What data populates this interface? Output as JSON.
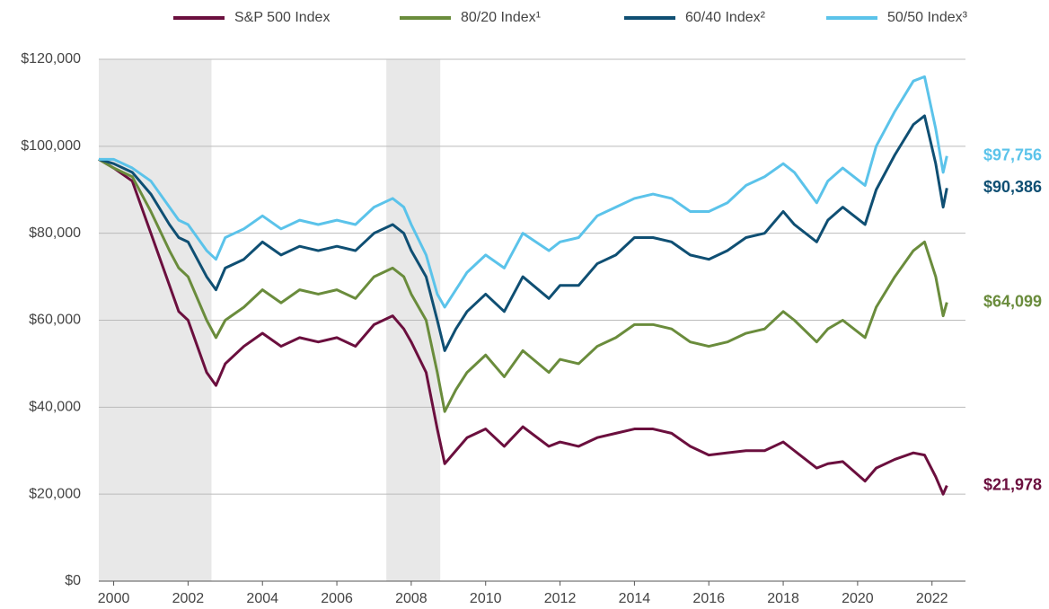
{
  "chart_data": {
    "type": "line",
    "x": [
      1999.6,
      2000.0,
      2000.5,
      2001.0,
      2001.5,
      2001.75,
      2002.0,
      2002.5,
      2002.75,
      2003.0,
      2003.5,
      2004.0,
      2004.5,
      2005.0,
      2005.5,
      2006.0,
      2006.5,
      2007.0,
      2007.5,
      2007.8,
      2008.0,
      2008.4,
      2008.7,
      2008.9,
      2009.2,
      2009.5,
      2010.0,
      2010.5,
      2011.0,
      2011.7,
      2012.0,
      2012.5,
      2013.0,
      2013.5,
      2014.0,
      2014.5,
      2015.0,
      2015.5,
      2016.0,
      2016.5,
      2017.0,
      2017.5,
      2018.0,
      2018.3,
      2018.9,
      2019.2,
      2019.6,
      2020.2,
      2020.5,
      2021.0,
      2021.5,
      2021.8,
      2022.1,
      2022.3,
      2022.4
    ],
    "series": [
      {
        "name": "S&P 500 Index",
        "color": "#6b0f3e",
        "end_label": "$21,978",
        "values": [
          97000,
          95000,
          92000,
          80000,
          68000,
          62000,
          60000,
          48000,
          45000,
          50000,
          54000,
          57000,
          54000,
          56000,
          55000,
          56000,
          54000,
          59000,
          61000,
          58000,
          55000,
          48000,
          35000,
          27000,
          30000,
          33000,
          35000,
          31000,
          35500,
          31000,
          32000,
          31000,
          33000,
          34000,
          35000,
          35000,
          34000,
          31000,
          29000,
          29500,
          30000,
          30000,
          32000,
          30000,
          26000,
          27000,
          27500,
          23000,
          26000,
          28000,
          29500,
          29000,
          24000,
          20000,
          21978
        ]
      },
      {
        "name": "80/20 Index¹",
        "color": "#6a8c3c",
        "end_label": "$64,099",
        "values": [
          97000,
          95000,
          93000,
          85000,
          76000,
          72000,
          70000,
          60000,
          56000,
          60000,
          63000,
          67000,
          64000,
          67000,
          66000,
          67000,
          65000,
          70000,
          72000,
          70000,
          66000,
          60000,
          48000,
          39000,
          44000,
          48000,
          52000,
          47000,
          53000,
          48000,
          51000,
          50000,
          54000,
          56000,
          59000,
          59000,
          58000,
          55000,
          54000,
          55000,
          57000,
          58000,
          62000,
          60000,
          55000,
          58000,
          60000,
          56000,
          63000,
          70000,
          76000,
          78000,
          70000,
          61000,
          64099
        ]
      },
      {
        "name": "60/40 Index²",
        "color": "#0f4f73",
        "end_label": "$90,386",
        "values": [
          97000,
          96000,
          94000,
          89000,
          82000,
          79000,
          78000,
          70000,
          67000,
          72000,
          74000,
          78000,
          75000,
          77000,
          76000,
          77000,
          76000,
          80000,
          82000,
          80000,
          76000,
          70000,
          60000,
          53000,
          58000,
          62000,
          66000,
          62000,
          70000,
          65000,
          68000,
          68000,
          73000,
          75000,
          79000,
          79000,
          78000,
          75000,
          74000,
          76000,
          79000,
          80000,
          85000,
          82000,
          78000,
          83000,
          86000,
          82000,
          90000,
          98000,
          105000,
          107000,
          96000,
          86000,
          90386
        ]
      },
      {
        "name": "50/50 Index³",
        "color": "#5bc3ea",
        "end_label": "$97,756",
        "values": [
          97000,
          97000,
          95000,
          92000,
          86000,
          83000,
          82000,
          76000,
          74000,
          79000,
          81000,
          84000,
          81000,
          83000,
          82000,
          83000,
          82000,
          86000,
          88000,
          86000,
          82000,
          75000,
          66000,
          63000,
          67000,
          71000,
          75000,
          72000,
          80000,
          76000,
          78000,
          79000,
          84000,
          86000,
          88000,
          89000,
          88000,
          85000,
          85000,
          87000,
          91000,
          93000,
          96000,
          94000,
          87000,
          92000,
          95000,
          91000,
          100000,
          108000,
          115000,
          116000,
          104000,
          94000,
          97756
        ]
      }
    ],
    "shaded_regions": [
      [
        1999.6,
        2002.63
      ],
      [
        2007.33,
        2008.78
      ]
    ],
    "xlim": [
      1999.6,
      2022.9
    ],
    "xticks": [
      2000,
      2002,
      2004,
      2006,
      2008,
      2010,
      2012,
      2014,
      2016,
      2018,
      2020,
      2022
    ],
    "ylim": [
      0,
      120000
    ],
    "yticks": [
      {
        "value": 0,
        "label": "$0"
      },
      {
        "value": 20000,
        "label": "$20,000"
      },
      {
        "value": 40000,
        "label": "$40,000"
      },
      {
        "value": 60000,
        "label": "$60,000"
      },
      {
        "value": 80000,
        "label": "$80,000"
      },
      {
        "value": 100000,
        "label": "$100,000"
      },
      {
        "value": 120000,
        "label": "$120,000"
      }
    ],
    "grid": true,
    "legend": "top"
  }
}
